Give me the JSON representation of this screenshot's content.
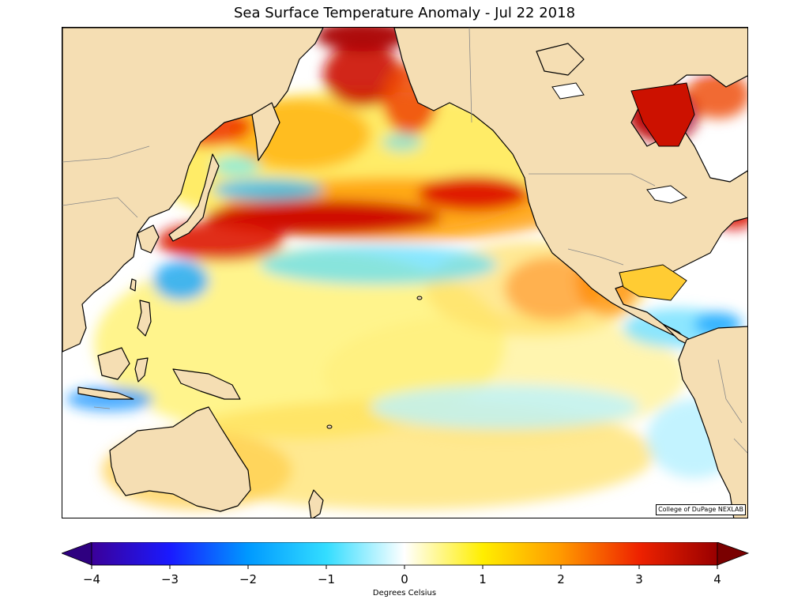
{
  "title": "Sea Surface Temperature Anomaly - Jul 22 2018",
  "credit": "College of DuPage NEXLAB",
  "colorbar": {
    "label": "Degrees Celsius",
    "min": -4,
    "max": 4,
    "ticks": [
      {
        "value": -4,
        "label": "−4"
      },
      {
        "value": -3,
        "label": "−3"
      },
      {
        "value": -2,
        "label": "−2"
      },
      {
        "value": -1,
        "label": "−1"
      },
      {
        "value": 0,
        "label": "0"
      },
      {
        "value": 1,
        "label": "1"
      },
      {
        "value": 2,
        "label": "2"
      },
      {
        "value": 3,
        "label": "3"
      },
      {
        "value": 4,
        "label": "4"
      }
    ],
    "color_stops": [
      "#3b0099",
      "#1a1aff",
      "#0099ff",
      "#33ddff",
      "#ffffff",
      "#ffee00",
      "#ff9900",
      "#ee2200",
      "#990000"
    ],
    "extend": "both"
  },
  "colors": {
    "land": "#f5deb3",
    "coastline": "#000000",
    "borders": "#888888",
    "warm_anomaly": "#cc0000",
    "cool_anomaly": "#33ccff"
  }
}
